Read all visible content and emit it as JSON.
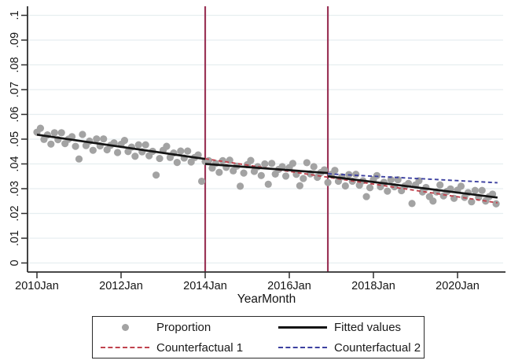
{
  "chart_data": {
    "type": "scatter",
    "title": "",
    "xlabel": "YearMonth",
    "ylabel": "",
    "xlim": [
      2009.78,
      2021.14
    ],
    "ylim": [
      0,
      0.104
    ],
    "grid": true,
    "x_ticks": [
      {
        "label": "2010Jan",
        "x": 2010
      },
      {
        "label": "2012Jan",
        "x": 2012
      },
      {
        "label": "2014Jan",
        "x": 2014
      },
      {
        "label": "2016Jan",
        "x": 2016
      },
      {
        "label": "2018Jan",
        "x": 2018
      },
      {
        "label": "2020Jan",
        "x": 2020
      }
    ],
    "y_ticks": [
      {
        "label": "0",
        "v": 0
      },
      {
        "label": ".01",
        "v": 0.01
      },
      {
        "label": ".02",
        "v": 0.02
      },
      {
        "label": ".03",
        "v": 0.03
      },
      {
        "label": ".04",
        "v": 0.04
      },
      {
        "label": ".05",
        "v": 0.05
      },
      {
        "label": ".06",
        "v": 0.06
      },
      {
        "label": ".07",
        "v": 0.07
      },
      {
        "label": ".08",
        "v": 0.08
      },
      {
        "label": ".09",
        "v": 0.09
      },
      {
        "label": ".1",
        "v": 0.1
      }
    ],
    "vlines": {
      "color": "#9b3557",
      "xs": [
        2014.0,
        2016.917
      ]
    },
    "colors": {
      "grid": "#e6eef0",
      "axis": "#2e2e2e",
      "tick_label": "#141414",
      "scatter": "#a3a3a3",
      "fitted": "#141414",
      "counterfactual1": "#c0434e",
      "counterfactual2": "#3c40a0"
    },
    "series": {
      "proportion": {
        "name": "Proportion",
        "points": [
          [
            2010.0,
            0.0528
          ],
          [
            2010.083,
            0.0544
          ],
          [
            2010.167,
            0.0499
          ],
          [
            2010.25,
            0.0517
          ],
          [
            2010.333,
            0.048
          ],
          [
            2010.417,
            0.0526
          ],
          [
            2010.5,
            0.0498
          ],
          [
            2010.583,
            0.0526
          ],
          [
            2010.667,
            0.0482
          ],
          [
            2010.75,
            0.05
          ],
          [
            2010.833,
            0.051
          ],
          [
            2010.917,
            0.0471
          ],
          [
            2011.0,
            0.042
          ],
          [
            2011.083,
            0.0519
          ],
          [
            2011.167,
            0.0474
          ],
          [
            2011.25,
            0.0492
          ],
          [
            2011.333,
            0.0455
          ],
          [
            2011.417,
            0.0501
          ],
          [
            2011.5,
            0.0473
          ],
          [
            2011.583,
            0.0501
          ],
          [
            2011.667,
            0.0457
          ],
          [
            2011.75,
            0.0475
          ],
          [
            2011.833,
            0.0485
          ],
          [
            2011.917,
            0.0446
          ],
          [
            2012.0,
            0.0479
          ],
          [
            2012.083,
            0.0495
          ],
          [
            2012.167,
            0.045
          ],
          [
            2012.25,
            0.0468
          ],
          [
            2012.333,
            0.0431
          ],
          [
            2012.417,
            0.0477
          ],
          [
            2012.5,
            0.0449
          ],
          [
            2012.583,
            0.0477
          ],
          [
            2012.667,
            0.0433
          ],
          [
            2012.75,
            0.0451
          ],
          [
            2012.833,
            0.0355
          ],
          [
            2012.917,
            0.0422
          ],
          [
            2013.0,
            0.0455
          ],
          [
            2013.083,
            0.0471
          ],
          [
            2013.167,
            0.0426
          ],
          [
            2013.25,
            0.0444
          ],
          [
            2013.333,
            0.0406
          ],
          [
            2013.417,
            0.0452
          ],
          [
            2013.5,
            0.0424
          ],
          [
            2013.583,
            0.0452
          ],
          [
            2013.667,
            0.0408
          ],
          [
            2013.75,
            0.0426
          ],
          [
            2013.833,
            0.0436
          ],
          [
            2013.917,
            0.033
          ],
          [
            2014.0,
            0.041
          ],
          [
            2014.083,
            0.0413
          ],
          [
            2014.167,
            0.0383
          ],
          [
            2014.25,
            0.0402
          ],
          [
            2014.333,
            0.0366
          ],
          [
            2014.417,
            0.0413
          ],
          [
            2014.5,
            0.0386
          ],
          [
            2014.583,
            0.0415
          ],
          [
            2014.667,
            0.0372
          ],
          [
            2014.75,
            0.0391
          ],
          [
            2014.833,
            0.031
          ],
          [
            2014.917,
            0.0363
          ],
          [
            2015.0,
            0.0397
          ],
          [
            2015.083,
            0.0414
          ],
          [
            2015.167,
            0.037
          ],
          [
            2015.25,
            0.0389
          ],
          [
            2015.333,
            0.0353
          ],
          [
            2015.417,
            0.04
          ],
          [
            2015.5,
            0.0318
          ],
          [
            2015.583,
            0.0402
          ],
          [
            2015.667,
            0.0359
          ],
          [
            2015.75,
            0.0378
          ],
          [
            2015.833,
            0.0389
          ],
          [
            2015.917,
            0.0351
          ],
          [
            2016.0,
            0.0385
          ],
          [
            2016.083,
            0.0402
          ],
          [
            2016.167,
            0.0358
          ],
          [
            2016.25,
            0.0312
          ],
          [
            2016.333,
            0.0341
          ],
          [
            2016.417,
            0.0405
          ],
          [
            2016.5,
            0.036
          ],
          [
            2016.583,
            0.0389
          ],
          [
            2016.667,
            0.0346
          ],
          [
            2016.75,
            0.0365
          ],
          [
            2016.833,
            0.0376
          ],
          [
            2016.917,
            0.0325
          ],
          [
            2017.0,
            0.0358
          ],
          [
            2017.083,
            0.0374
          ],
          [
            2017.167,
            0.033
          ],
          [
            2017.25,
            0.0348
          ],
          [
            2017.333,
            0.0311
          ],
          [
            2017.417,
            0.0357
          ],
          [
            2017.5,
            0.033
          ],
          [
            2017.583,
            0.0358
          ],
          [
            2017.667,
            0.0314
          ],
          [
            2017.75,
            0.0332
          ],
          [
            2017.833,
            0.0268
          ],
          [
            2017.917,
            0.0304
          ],
          [
            2018.0,
            0.0337
          ],
          [
            2018.083,
            0.0353
          ],
          [
            2018.167,
            0.0308
          ],
          [
            2018.25,
            0.0326
          ],
          [
            2018.333,
            0.029
          ],
          [
            2018.417,
            0.0336
          ],
          [
            2018.5,
            0.0308
          ],
          [
            2018.583,
            0.0336
          ],
          [
            2018.667,
            0.0292
          ],
          [
            2018.75,
            0.0311
          ],
          [
            2018.833,
            0.0321
          ],
          [
            2018.917,
            0.024
          ],
          [
            2019.0,
            0.0315
          ],
          [
            2019.083,
            0.0332
          ],
          [
            2019.167,
            0.0287
          ],
          [
            2019.25,
            0.0305
          ],
          [
            2019.333,
            0.0268
          ],
          [
            2019.417,
            0.025
          ],
          [
            2019.5,
            0.0287
          ],
          [
            2019.583,
            0.0315
          ],
          [
            2019.667,
            0.0271
          ],
          [
            2019.75,
            0.0289
          ],
          [
            2019.833,
            0.0299
          ],
          [
            2019.917,
            0.0261
          ],
          [
            2020.0,
            0.0294
          ],
          [
            2020.083,
            0.031
          ],
          [
            2020.167,
            0.0265
          ],
          [
            2020.25,
            0.0284
          ],
          [
            2020.333,
            0.0247
          ],
          [
            2020.417,
            0.0293
          ],
          [
            2020.5,
            0.0265
          ],
          [
            2020.583,
            0.0293
          ],
          [
            2020.667,
            0.025
          ],
          [
            2020.75,
            0.0268
          ],
          [
            2020.833,
            0.0278
          ],
          [
            2020.917,
            0.0239
          ]
        ]
      },
      "fitted": {
        "name": "Fitted values",
        "segments": [
          [
            [
              2010.0,
              0.0518
            ],
            [
              2014.0,
              0.042
            ]
          ],
          [
            [
              2014.0,
              0.04
            ],
            [
              2016.917,
              0.0363
            ]
          ],
          [
            [
              2016.917,
              0.035
            ],
            [
              2020.95,
              0.0264
            ]
          ]
        ]
      },
      "counterfactual1": {
        "name": "Counterfactual 1",
        "line": [
          [
            2014.0,
            0.0421
          ],
          [
            2020.95,
            0.0243
          ]
        ]
      },
      "counterfactual2": {
        "name": "Counterfactual 2",
        "line": [
          [
            2016.917,
            0.036
          ],
          [
            2020.95,
            0.0324
          ]
        ]
      }
    },
    "legend": {
      "position": "bottom",
      "items": [
        {
          "label": "Proportion",
          "type": "marker",
          "color": "#a3a3a3"
        },
        {
          "label": "Fitted values",
          "type": "solid",
          "color": "#141414"
        },
        {
          "label": "Counterfactual 1",
          "type": "dashed",
          "color": "#c0434e"
        },
        {
          "label": "Counterfactual 2",
          "type": "dashed",
          "color": "#3c40a0"
        }
      ]
    }
  }
}
